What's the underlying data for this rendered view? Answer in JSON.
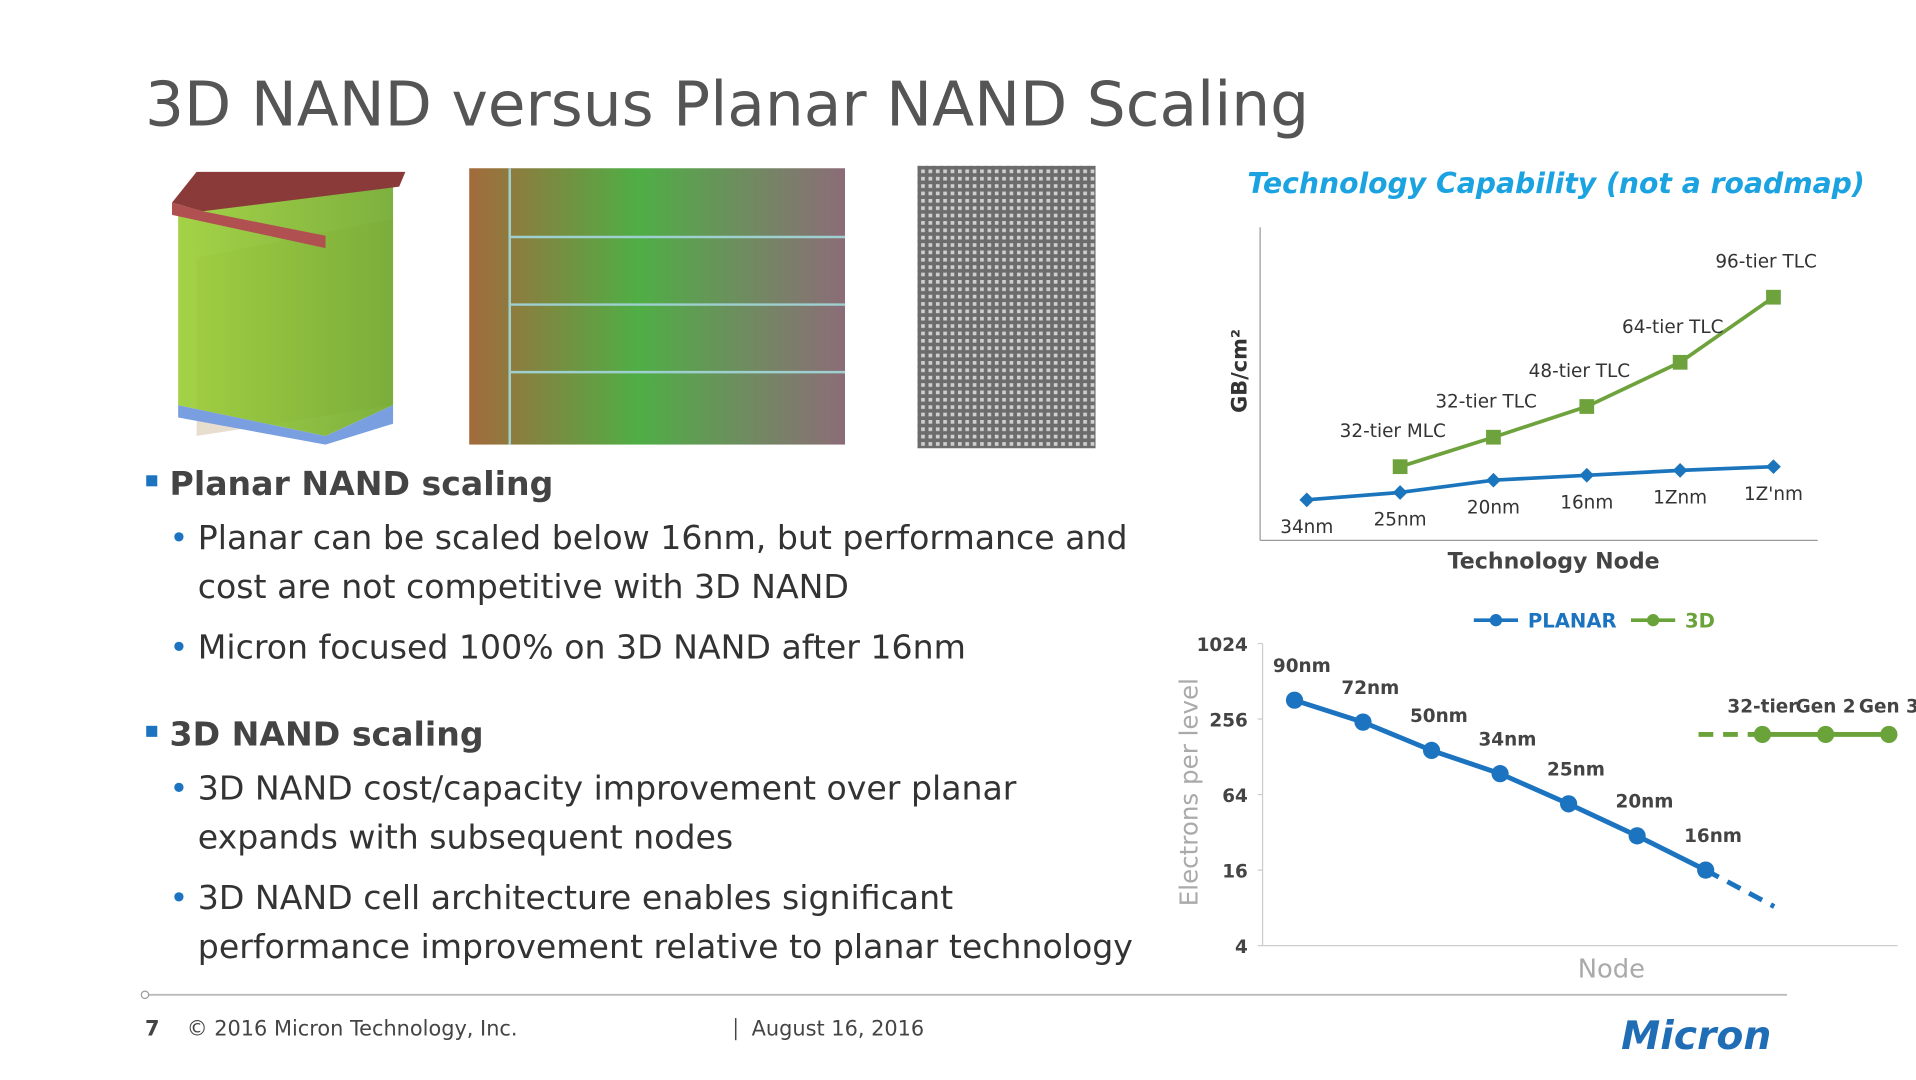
{
  "header": {
    "title": "3D NAND versus Planar NAND Scaling"
  },
  "bullets": [
    {
      "text": "Planar NAND scaling",
      "items": [
        [
          "Planar can be scaled below 16nm, but performance and",
          "cost are not competitive with 3D NAND"
        ],
        [
          "Micron focused 100% on 3D NAND after 16nm"
        ]
      ]
    },
    {
      "text": "3D NAND scaling",
      "items": [
        [
          "3D NAND cost/capacity improvement over planar",
          "expands with subsequent nodes"
        ],
        [
          "3D NAND  cell architecture enables significant",
          "performance improvement relative to planar technology"
        ]
      ]
    }
  ],
  "chart_data": [
    {
      "type": "line",
      "title": "Technology Capability (not a roadmap)",
      "ylabel": "GB/cm²",
      "xlabel": "Technology Node",
      "categories": [
        "34nm",
        "25nm",
        "20nm",
        "16nm",
        "1Znm",
        "1Z'nm"
      ],
      "ylim": [
        0,
        25.5
      ],
      "series": [
        {
          "color": "#1b75bc",
          "marker": "diamond",
          "values": [
            3.3,
            3.9,
            4.9,
            5.3,
            5.7,
            6.0
          ]
        },
        {
          "color": "#6ea23c",
          "marker": "square",
          "values": [
            null,
            6.0,
            8.4,
            10.9,
            14.5,
            19.8
          ],
          "point_labels": [
            null,
            "32-tier MLC",
            "32-tier TLC",
            "48-tier TLC",
            "64-tier TLC",
            "96-tier TLC"
          ]
        }
      ]
    },
    {
      "type": "line",
      "ylabel": "Electrons per level",
      "xlabel": "Node",
      "log_scale": true,
      "ylim": [
        4,
        1024
      ],
      "yticks": [
        4,
        16,
        64,
        256,
        1024
      ],
      "legend": "top",
      "categories": [
        "90nm",
        "72nm",
        "50nm",
        "34nm",
        "25nm",
        "20nm",
        "16nm",
        null,
        "32-tier",
        "Gen 2",
        "Gen 3"
      ],
      "series": [
        {
          "name": "PLANAR",
          "color": "#1c74c0",
          "values": [
            362,
            242,
            144,
            94,
            54,
            30,
            16,
            8.2,
            null,
            null,
            null
          ]
        },
        {
          "name": "3D",
          "color": "#6aa33a",
          "values": [
            null,
            null,
            null,
            null,
            null,
            null,
            null,
            null,
            193,
            193,
            193
          ]
        }
      ]
    }
  ],
  "footer": {
    "page": "7",
    "copyright": "© 2016 Micron Technology, Inc.",
    "date": "August 16, 2016",
    "logo": "Micron"
  }
}
